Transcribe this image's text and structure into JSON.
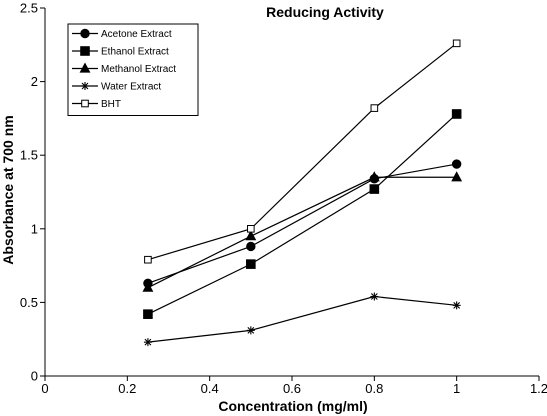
{
  "chart_data": {
    "type": "line",
    "title": "Reducing Activity",
    "xlabel": "Concentration (mg/ml)",
    "ylabel": "Absorbance at 700 nm",
    "xlim": [
      0,
      1.2
    ],
    "ylim": [
      0,
      2.5
    ],
    "x_ticks": [
      "0",
      "0.2",
      "0.4",
      "0.6",
      "0.8",
      "1",
      "1.2"
    ],
    "y_ticks": [
      "0",
      "0.5",
      "1",
      "1.5",
      "2",
      "2.5"
    ],
    "grid": false,
    "legend_position": "top-left",
    "x": [
      0.25,
      0.5,
      0.8,
      1.0
    ],
    "series": [
      {
        "name": "Acetone Extract",
        "marker": "filled-circle",
        "values": [
          0.63,
          0.88,
          1.34,
          1.44
        ]
      },
      {
        "name": "Ethanol Extract",
        "marker": "filled-square",
        "values": [
          0.42,
          0.76,
          1.27,
          1.78
        ]
      },
      {
        "name": "Methanol Extract",
        "marker": "filled-triangle",
        "values": [
          0.6,
          0.95,
          1.35,
          1.35
        ]
      },
      {
        "name": "Water Extract",
        "marker": "asterisk",
        "values": [
          0.23,
          0.31,
          0.54,
          0.48
        ]
      },
      {
        "name": "BHT",
        "marker": "open-square",
        "values": [
          0.79,
          1.0,
          1.82,
          2.26
        ]
      }
    ]
  },
  "colors": {
    "line": "#000000",
    "background": "#ffffff"
  }
}
